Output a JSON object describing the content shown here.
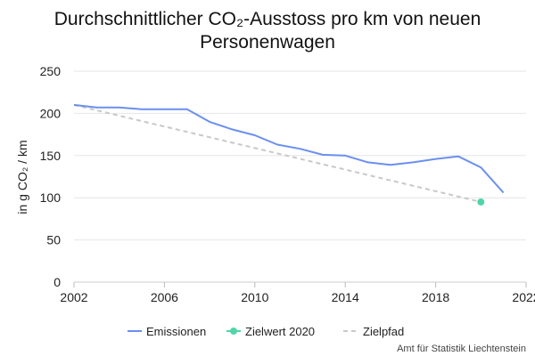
{
  "chart_data": {
    "type": "line",
    "title_line1": "Durchschnittlicher CO₂-Ausstoss pro km von neuen",
    "title_line2": "Personenwagen",
    "ylabel": "in g CO₂ / km",
    "xlim": [
      2002,
      2022
    ],
    "ylim": [
      0,
      250
    ],
    "x_ticks": [
      "2002",
      "2006",
      "2010",
      "2014",
      "2018",
      "2022"
    ],
    "y_ticks": [
      "0",
      "50",
      "100",
      "150",
      "200",
      "250"
    ],
    "grid": true,
    "legend_position": "bottom",
    "series": [
      {
        "name": "Emissionen",
        "kind": "line",
        "color": "#6b8ff0",
        "x": [
          2002,
          2003,
          2004,
          2005,
          2006,
          2007,
          2008,
          2009,
          2010,
          2011,
          2012,
          2013,
          2014,
          2015,
          2016,
          2017,
          2018,
          2019,
          2020,
          2021
        ],
        "y": [
          210,
          207,
          207,
          205,
          205,
          205,
          190,
          181,
          174,
          163,
          158,
          151,
          150,
          142,
          139,
          142,
          146,
          149,
          136,
          106
        ]
      },
      {
        "name": "Zielwert 2020",
        "kind": "point",
        "color": "#4fd6a8",
        "x": [
          2020
        ],
        "y": [
          95
        ]
      },
      {
        "name": "Zielpfad",
        "kind": "dashed",
        "color": "#c8c8c8",
        "x": [
          2002,
          2020
        ],
        "y": [
          210,
          95
        ]
      }
    ]
  },
  "credit": "Amt für Statistik Liechtenstein"
}
